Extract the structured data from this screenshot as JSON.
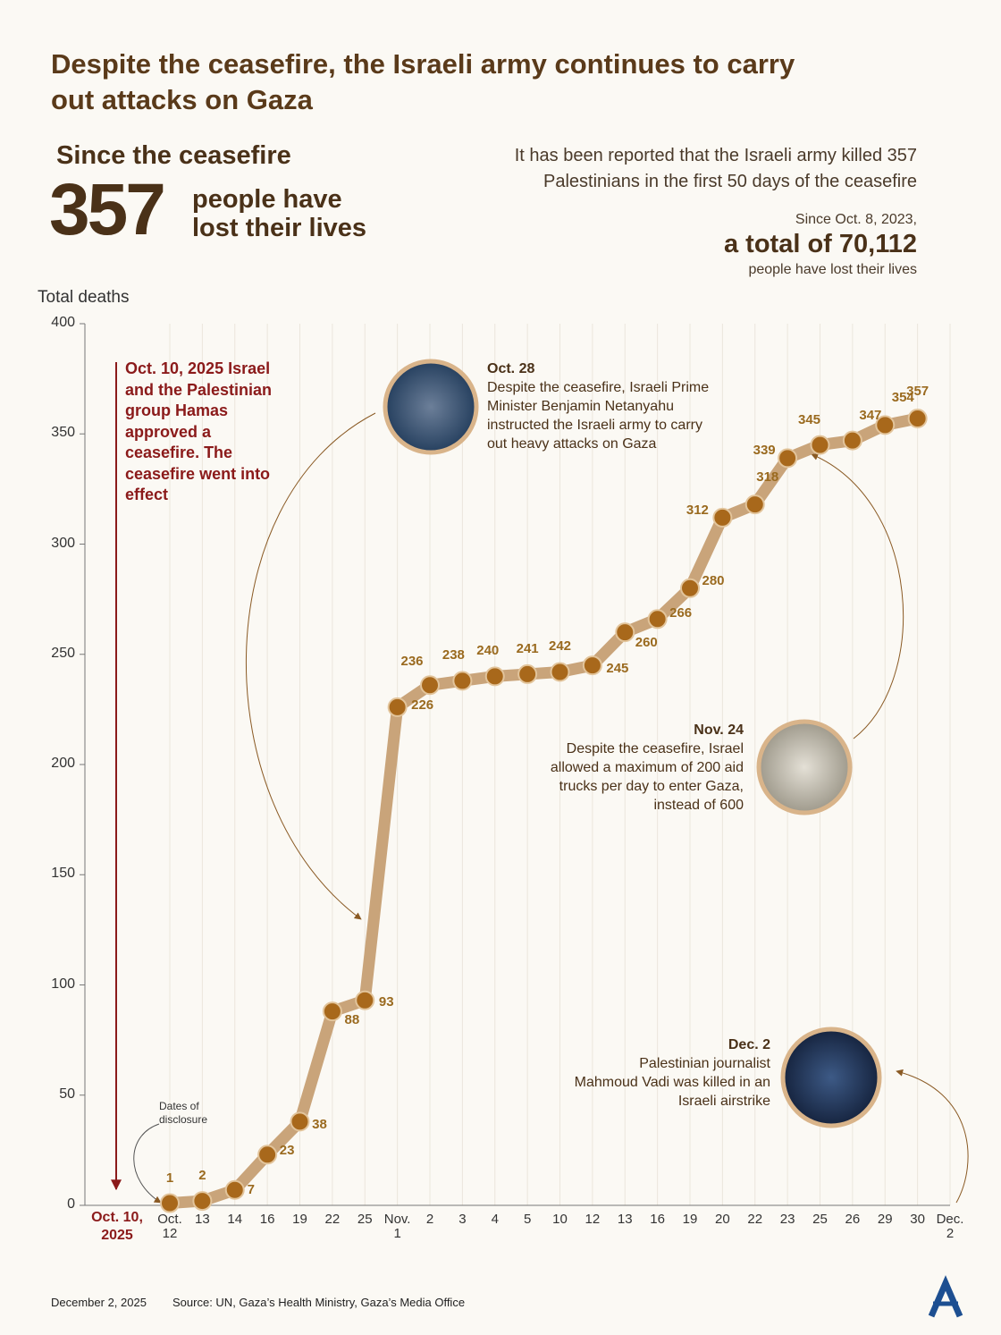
{
  "header": {
    "title": "Despite the ceasefire, the Israeli army continues to carry out attacks on Gaza",
    "left_label": "Since the ceasefire",
    "big_number": "357",
    "big_number_caption": "people have lost their lives",
    "report_text": "It has been reported that the Israeli army killed 357 Palestinians in the first 50 days of the ceasefire",
    "total_intro": "Since Oct. 8, 2023,",
    "total_text": "a total of 70,112",
    "total_caption": "people have lost their lives"
  },
  "chart_data": {
    "type": "line",
    "y_label": "Total deaths",
    "categories": [
      "Oct. 12",
      "13",
      "14",
      "16",
      "19",
      "22",
      "25",
      "Nov. 1",
      "2",
      "3",
      "4",
      "5",
      "10",
      "12",
      "13",
      "16",
      "19",
      "20",
      "22",
      "23",
      "25",
      "26",
      "29",
      "30",
      "Dec. 2"
    ],
    "values": [
      1,
      2,
      7,
      23,
      38,
      88,
      93,
      226,
      236,
      238,
      240,
      241,
      242,
      245,
      260,
      266,
      280,
      312,
      318,
      339,
      345,
      347,
      354,
      357,
      null
    ],
    "ylim": [
      0,
      400
    ],
    "yticks": [
      0,
      50,
      100,
      150,
      200,
      250,
      300,
      350,
      400
    ],
    "line_color": "#c9a47a",
    "marker_color": "#a8681b",
    "grid": true,
    "ceasefire_label": "Oct. 10, 2025",
    "ceasefire_text": "Oct. 10, 2025 Israel and the Palestinian group Hamas approved a ceasefire. The ceasefire went into effect",
    "dates_note": "Dates of disclosure",
    "annotations": [
      {
        "date": "Oct. 28",
        "text": "Despite the ceasefire, Israeli Prime Minister Benjamin Netanyahu instructed the Israeli army to carry out heavy attacks on Gaza"
      },
      {
        "date": "Nov. 24",
        "text": "Despite the ceasefire, Israel allowed a maximum of 200 aid trucks per day to enter Gaza, instead of 600"
      },
      {
        "date": "Dec. 2",
        "text": "Palestinian journalist Mahmoud Vadi was killed in an Israeli airstrike"
      }
    ]
  },
  "footer": {
    "date": "December 2, 2025",
    "source": "Source: UN, Gaza’s Health Ministry, Gaza’s Media Office",
    "logo": "AA"
  }
}
